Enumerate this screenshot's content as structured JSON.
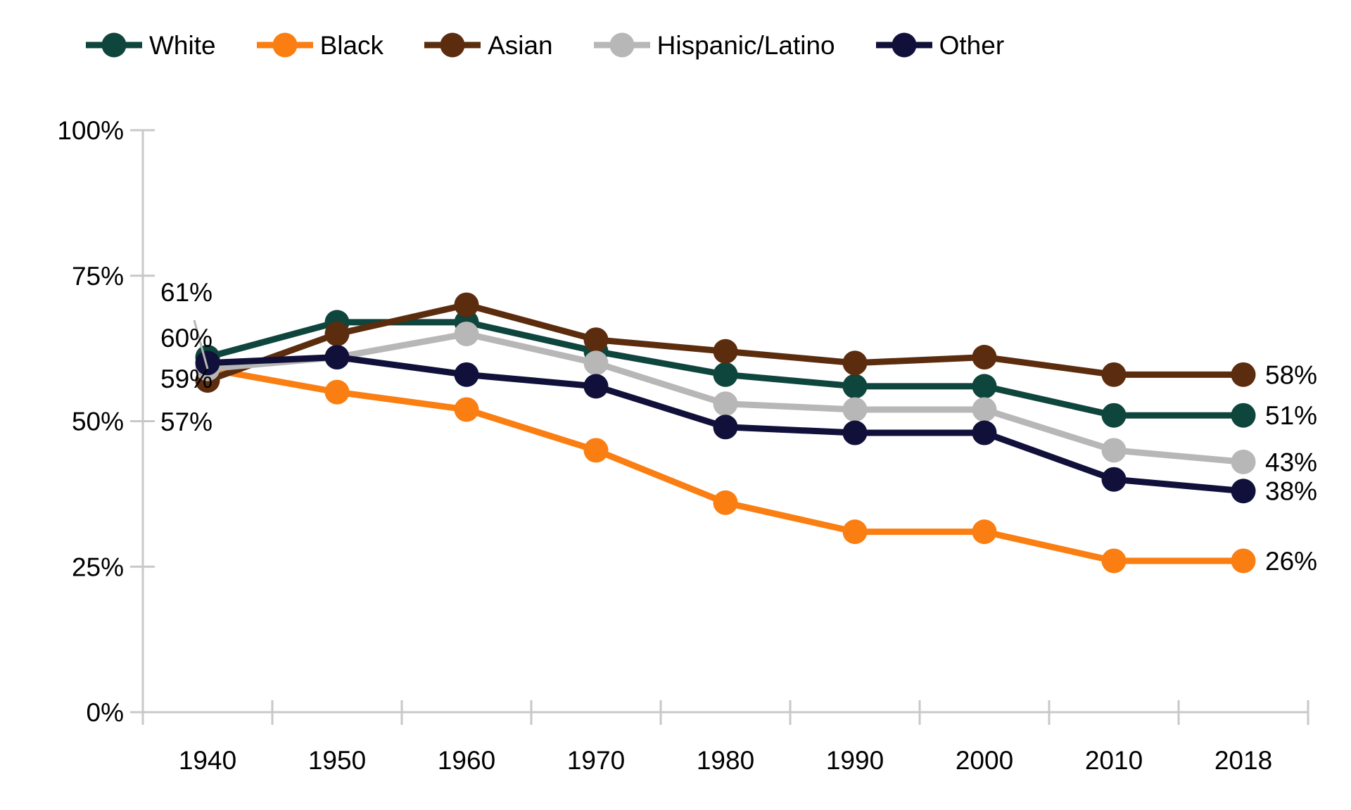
{
  "chart_data": {
    "type": "line",
    "title": "",
    "xlabel": "",
    "ylabel": "",
    "categories": [
      "1940",
      "1950",
      "1960",
      "1970",
      "1980",
      "1990",
      "2000",
      "2010",
      "2018"
    ],
    "series": [
      {
        "name": "White",
        "color": "#0e453c",
        "values": [
          61,
          67,
          67,
          62,
          58,
          56,
          56,
          51,
          51
        ]
      },
      {
        "name": "Black",
        "color": "#fa7e11",
        "values": [
          59,
          55,
          52,
          45,
          36,
          31,
          31,
          26,
          26
        ]
      },
      {
        "name": "Asian",
        "color": "#5b2d0e",
        "values": [
          57,
          65,
          70,
          64,
          62,
          60,
          61,
          58,
          58
        ]
      },
      {
        "name": "Hispanic/Latino",
        "color": "#b7b7b7",
        "values": [
          59,
          61,
          65,
          60,
          53,
          52,
          52,
          45,
          43
        ]
      },
      {
        "name": "Other",
        "color": "#10103a",
        "values": [
          60,
          61,
          58,
          56,
          49,
          48,
          48,
          40,
          38
        ]
      }
    ],
    "ylim": [
      0,
      100
    ],
    "y_ticks": [
      {
        "value": 100,
        "label": "100%"
      },
      {
        "value": 75,
        "label": "75%"
      },
      {
        "value": 50,
        "label": "50%"
      },
      {
        "value": 25,
        "label": "25%"
      },
      {
        "value": 0,
        "label": "0%"
      }
    ],
    "grid": "off",
    "legend_position": "top",
    "start_labels": [
      {
        "series": "White",
        "text": "61%"
      },
      {
        "series": "Other",
        "text": "60%"
      },
      {
        "series": "Hispanic/Latino",
        "text": "59%"
      },
      {
        "series": "Asian",
        "text": "57%"
      }
    ],
    "end_labels": [
      {
        "series": "Asian",
        "text": "58%"
      },
      {
        "series": "White",
        "text": "51%"
      },
      {
        "series": "Hispanic/Latino",
        "text": "43%"
      },
      {
        "series": "Other",
        "text": "38%"
      },
      {
        "series": "Black",
        "text": "26%"
      }
    ],
    "axis_color": "#c8c8c8"
  }
}
